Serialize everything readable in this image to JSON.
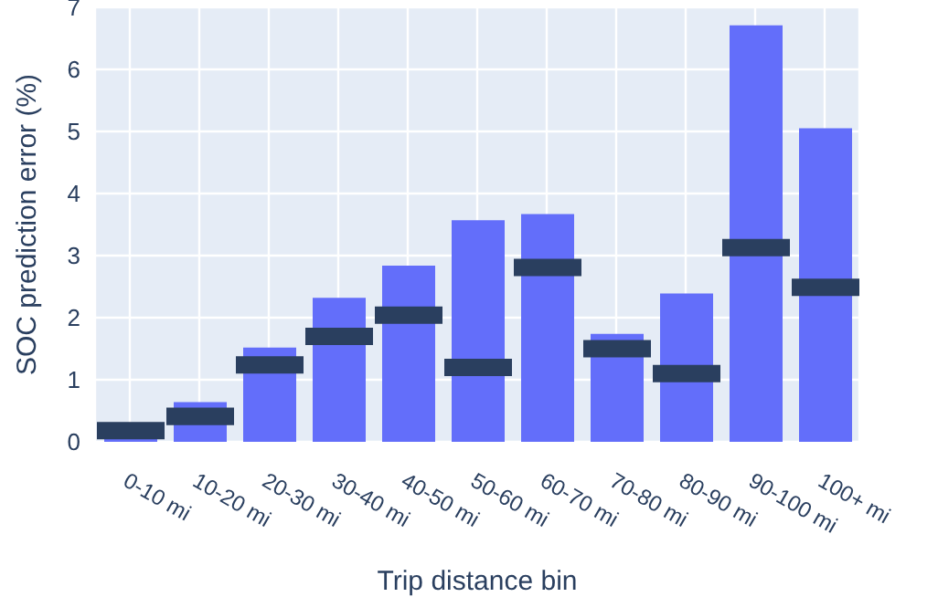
{
  "chart_data": {
    "type": "bar",
    "xlabel": "Trip distance bin",
    "ylabel": "SOC prediction error (%)",
    "categories": [
      "0-10 mi",
      "10-20 mi",
      "20-30 mi",
      "30-40 mi",
      "40-50 mi",
      "50-60 mi",
      "60-70 mi",
      "70-80 mi",
      "80-90 mi",
      "90-100 mi",
      "100+ mi"
    ],
    "series": [
      {
        "color": "#636efa",
        "values": [
          0.05,
          0.64,
          1.52,
          2.32,
          2.84,
          3.57,
          3.67,
          1.74,
          2.39,
          6.71,
          5.05
        ]
      },
      {
        "color": "#2a3f5f",
        "base": [
          0.04,
          0.27,
          1.1,
          1.56,
          1.9,
          1.06,
          2.67,
          1.36,
          0.96,
          2.99,
          2.35
        ],
        "values": [
          0.28,
          0.28,
          0.28,
          0.28,
          0.28,
          0.28,
          0.28,
          0.28,
          0.28,
          0.28,
          0.28
        ]
      }
    ],
    "ylim": [
      0,
      7
    ],
    "yticks": [
      0,
      1,
      2,
      3,
      4,
      5,
      6,
      7
    ],
    "grid": true
  }
}
